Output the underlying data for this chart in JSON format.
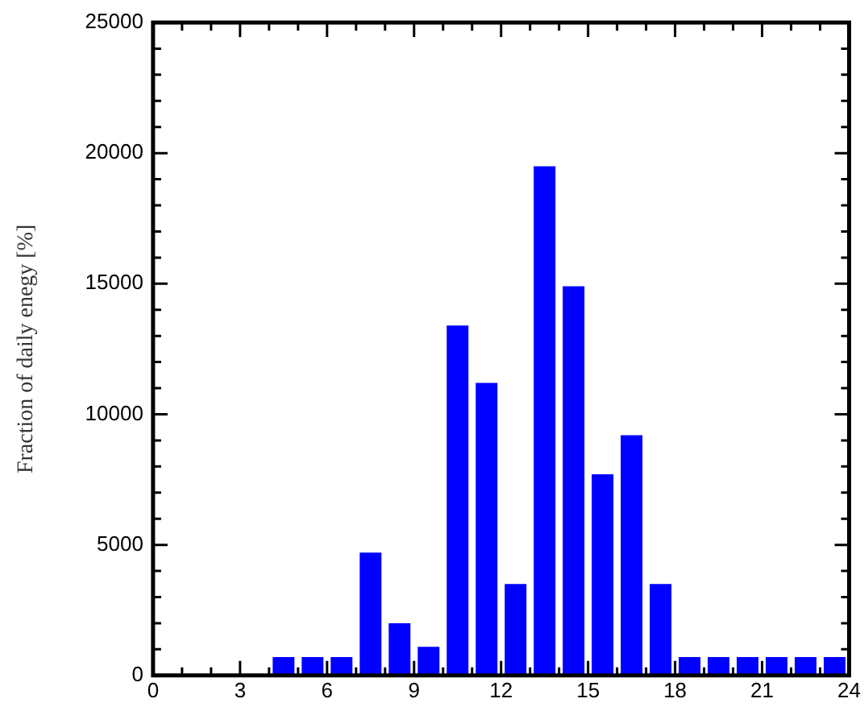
{
  "chart_data": {
    "type": "histogram",
    "ylabel": "Fraction of daily enegy [%]",
    "color": "#0000ff",
    "bins": [
      0,
      1,
      2,
      3,
      4,
      5,
      6,
      7,
      8,
      9,
      10,
      11,
      12,
      13,
      14,
      15,
      16,
      17,
      18,
      19,
      20,
      21,
      22,
      23,
      24
    ],
    "values": [
      null,
      null,
      null,
      null,
      700,
      700,
      700,
      4700,
      2000,
      1100,
      13400,
      11200,
      3500,
      19500,
      14900,
      7700,
      9200,
      3500,
      700,
      700,
      700,
      700,
      700,
      700
    ],
    "xlim": [
      0,
      24
    ],
    "xticks": [
      0,
      {
        "value": 1,
        "label": null
      },
      {
        "value": 2,
        "label": null
      },
      3,
      {
        "value": 4,
        "label": null
      },
      {
        "value": 5,
        "label": null
      },
      6,
      {
        "value": 7,
        "label": null
      },
      {
        "value": 8,
        "label": null
      },
      9,
      {
        "value": 10,
        "label": null
      },
      {
        "value": 11,
        "label": null
      },
      12,
      {
        "value": 13,
        "label": null
      },
      {
        "value": 14,
        "label": null
      },
      15,
      {
        "value": 16,
        "label": null
      },
      {
        "value": 17,
        "label": null
      },
      18,
      {
        "value": 19,
        "label": null
      },
      {
        "value": 20,
        "label": null
      },
      21,
      {
        "value": 22,
        "label": null
      },
      {
        "value": 23,
        "label": null
      },
      24
    ],
    "ylim": [
      0,
      25000
    ],
    "yticks": [
      0,
      {
        "value": 1000,
        "label": null
      },
      {
        "value": 2000,
        "label": null
      },
      {
        "value": 3000,
        "label": null
      },
      {
        "value": 4000,
        "label": null
      },
      5000,
      {
        "value": 6000,
        "label": null
      },
      {
        "value": 7000,
        "label": null
      },
      {
        "value": 8000,
        "label": null
      },
      {
        "value": 9000,
        "label": null
      },
      10000,
      {
        "value": 11000,
        "label": null
      },
      {
        "value": 12000,
        "label": null
      },
      {
        "value": 13000,
        "label": null
      },
      {
        "value": 14000,
        "label": null
      },
      15000,
      {
        "value": 16000,
        "label": null
      },
      {
        "value": 17000,
        "label": null
      },
      {
        "value": 18000,
        "label": null
      },
      {
        "value": 19000,
        "label": null
      },
      20000,
      {
        "value": 21000,
        "label": null
      },
      {
        "value": 22000,
        "label": null
      },
      {
        "value": 23000,
        "label": null
      },
      {
        "value": 24000,
        "label": null
      },
      25000
    ],
    "grid": false,
    "legend": false
  }
}
